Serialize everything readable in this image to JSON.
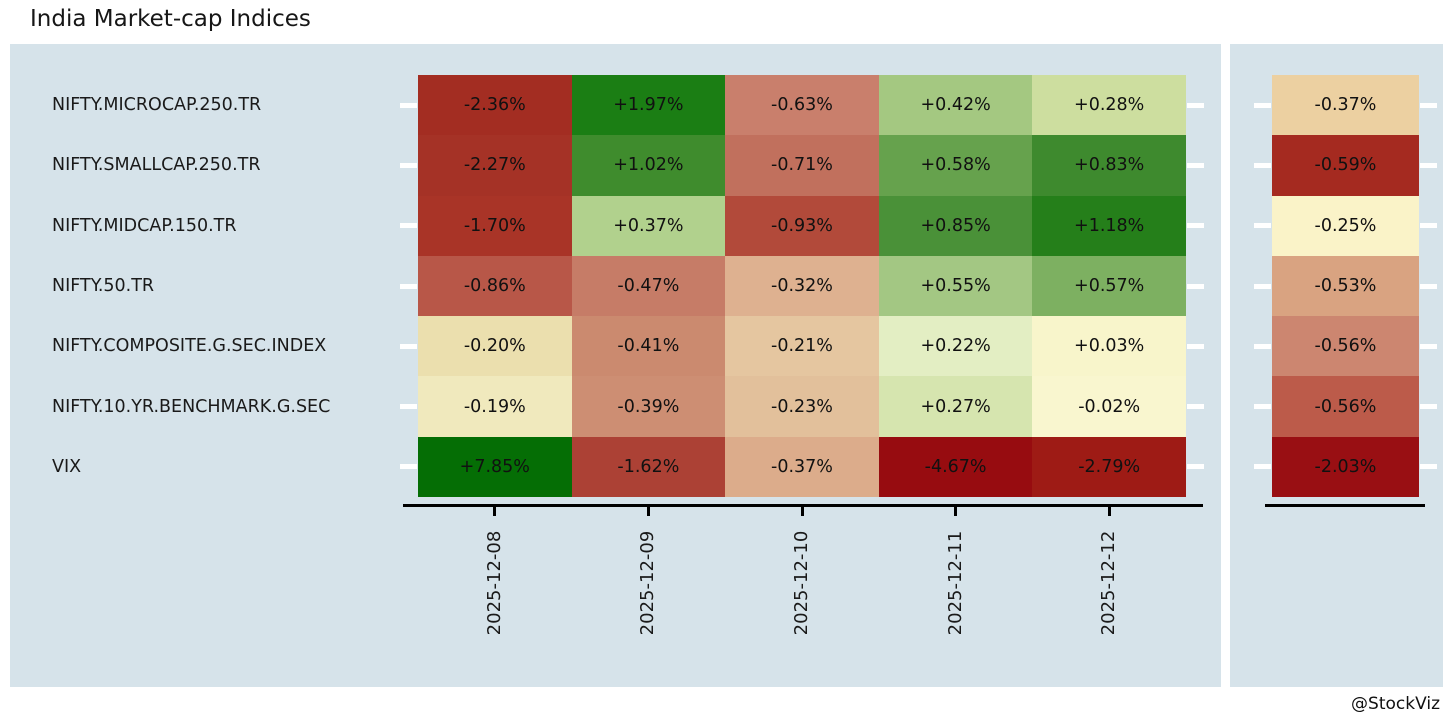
{
  "title": "India Market-cap Indices",
  "attribution": "@StockViz",
  "colors": {
    "background": "#ffffff",
    "panel": "#d6e3ea",
    "axis_line": "#000000",
    "tick_mark": "#ffffff",
    "text": "#1a1a1a"
  },
  "chart_data": {
    "type": "heatmap",
    "title": "India Market-cap Indices",
    "x_axis": {
      "labels": [
        "2025-12-08",
        "2025-12-09",
        "2025-12-10",
        "2025-12-11",
        "2025-12-12"
      ],
      "label_rotation_degrees": -90
    },
    "value_unit": "percent_daily_change",
    "summary_column_note": "separate right-hand column, same rows",
    "rows": [
      {
        "label": "NIFTY.MICROCAP.250.TR",
        "values": [
          -2.36,
          1.97,
          -0.63,
          0.42,
          0.28
        ],
        "display": [
          "-2.36%",
          "+1.97%",
          "-0.63%",
          "+0.42%",
          "+0.28%"
        ],
        "cell_colors": [
          "#a32d22",
          "#1b7e14",
          "#c97f6c",
          "#a4c881",
          "#cdde9f"
        ],
        "summary": {
          "value": -0.37,
          "display": "-0.37%",
          "color": "#ecd0a1"
        }
      },
      {
        "label": "NIFTY.SMALLCAP.250.TR",
        "values": [
          -2.27,
          1.02,
          -0.71,
          0.58,
          0.83
        ],
        "display": [
          "-2.27%",
          "+1.02%",
          "-0.71%",
          "+0.58%",
          "+0.83%"
        ],
        "cell_colors": [
          "#a53226",
          "#3f8c2d",
          "#c1705d",
          "#66a24d",
          "#3e8a2e"
        ],
        "summary": {
          "value": -0.59,
          "display": "-0.59%",
          "color": "#a52a20"
        }
      },
      {
        "label": "NIFTY.MIDCAP.150.TR",
        "values": [
          -1.7,
          0.37,
          -0.93,
          0.85,
          1.18
        ],
        "display": [
          "-1.70%",
          "+0.37%",
          "-0.93%",
          "+0.85%",
          "+1.18%"
        ],
        "cell_colors": [
          "#a93427",
          "#b1d18d",
          "#b24a3a",
          "#4a9138",
          "#257f1a"
        ],
        "summary": {
          "value": -0.25,
          "display": "-0.25%",
          "color": "#faf3c8"
        }
      },
      {
        "label": "NIFTY.50.TR",
        "values": [
          -0.86,
          -0.47,
          -0.32,
          0.55,
          0.57
        ],
        "display": [
          "-0.86%",
          "-0.47%",
          "-0.32%",
          "+0.55%",
          "+0.57%"
        ],
        "cell_colors": [
          "#b85748",
          "#c67c67",
          "#deb190",
          "#a3c783",
          "#7db061"
        ],
        "summary": {
          "value": -0.53,
          "display": "-0.53%",
          "color": "#d9a381"
        }
      },
      {
        "label": "NIFTY.COMPOSITE.G.SEC.INDEX",
        "values": [
          -0.2,
          -0.41,
          -0.21,
          0.22,
          0.03
        ],
        "display": [
          "-0.20%",
          "-0.41%",
          "-0.21%",
          "+0.22%",
          "+0.03%"
        ],
        "cell_colors": [
          "#ebdfae",
          "#cb8a6f",
          "#e5c6a0",
          "#e3eec3",
          "#f8f5cb"
        ],
        "summary": {
          "value": -0.56,
          "display": "-0.56%",
          "color": "#cc8670"
        }
      },
      {
        "label": "NIFTY.10.YR.BENCHMARK.G.SEC",
        "values": [
          -0.19,
          -0.39,
          -0.23,
          0.27,
          -0.02
        ],
        "display": [
          "-0.19%",
          "-0.39%",
          "-0.23%",
          "+0.27%",
          "-0.02%"
        ],
        "cell_colors": [
          "#f0e9bd",
          "#cd8e73",
          "#e2c09b",
          "#d6e5af",
          "#f9f6cf"
        ],
        "summary": {
          "value": -0.56,
          "display": "-0.56%",
          "color": "#bc5b4a"
        }
      },
      {
        "label": "VIX",
        "values": [
          7.85,
          -1.62,
          -0.37,
          -4.67,
          -2.79
        ],
        "display": [
          "+7.85%",
          "-1.62%",
          "-0.37%",
          "-4.67%",
          "-2.79%"
        ],
        "cell_colors": [
          "#056e05",
          "#ac4135",
          "#dcac8b",
          "#970c10",
          "#9e1b15"
        ],
        "summary": {
          "value": -2.03,
          "display": "-2.03%",
          "color": "#990f13"
        }
      }
    ]
  }
}
